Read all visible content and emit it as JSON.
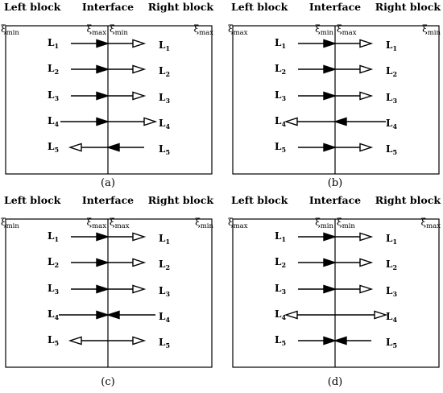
{
  "diagram": {
    "headers": {
      "left": "Left block",
      "mid": "Interface",
      "right": "Right block"
    },
    "xi_symbol": "ξ",
    "line_label_prefix": "L",
    "colors": {
      "line": "#000000",
      "background": "#ffffff"
    },
    "panels": [
      {
        "caption": "(a)",
        "xi": {
          "left_edge": "min",
          "interface_left": "max",
          "interface_right": "min",
          "right_edge": "max"
        },
        "lines": [
          {
            "n": "1",
            "left_seg": "right-filled",
            "right_seg": "right-open"
          },
          {
            "n": "2",
            "left_seg": "right-filled",
            "right_seg": "right-open"
          },
          {
            "n": "3",
            "left_seg": "right-filled",
            "right_seg": "right-open"
          },
          {
            "n": "4",
            "left_seg": "right-filled",
            "right_seg": "right-open"
          },
          {
            "n": "5",
            "left_seg": "left-open",
            "right_seg": "left-filled"
          }
        ]
      },
      {
        "caption": "(b)",
        "xi": {
          "left_edge": "max",
          "interface_left": "min",
          "interface_right": "max",
          "right_edge": "min"
        },
        "lines": [
          {
            "n": "1",
            "left_seg": "right-filled",
            "right_seg": "right-open"
          },
          {
            "n": "2",
            "left_seg": "right-filled",
            "right_seg": "right-open"
          },
          {
            "n": "3",
            "left_seg": "right-filled",
            "right_seg": "right-open"
          },
          {
            "n": "4",
            "left_seg": "left-open",
            "right_seg": "left-filled"
          },
          {
            "n": "5",
            "left_seg": "right-filled",
            "right_seg": "right-open"
          }
        ]
      },
      {
        "caption": "(c)",
        "xi": {
          "left_edge": "min",
          "interface_left": "max",
          "interface_right": "max",
          "right_edge": "min"
        },
        "lines": [
          {
            "n": "1",
            "left_seg": "right-filled",
            "right_seg": "right-open"
          },
          {
            "n": "2",
            "left_seg": "right-filled",
            "right_seg": "right-open"
          },
          {
            "n": "3",
            "left_seg": "right-filled",
            "right_seg": "right-open"
          },
          {
            "n": "4",
            "left_seg": "right-filled",
            "right_seg": "left-filled"
          },
          {
            "n": "5",
            "left_seg": "left-open",
            "right_seg": "right-open"
          }
        ]
      },
      {
        "caption": "(d)",
        "xi": {
          "left_edge": "max",
          "interface_left": "min",
          "interface_right": "min",
          "right_edge": "max"
        },
        "lines": [
          {
            "n": "1",
            "left_seg": "right-filled",
            "right_seg": "right-open"
          },
          {
            "n": "2",
            "left_seg": "right-filled",
            "right_seg": "right-open"
          },
          {
            "n": "3",
            "left_seg": "right-filled",
            "right_seg": "right-open"
          },
          {
            "n": "4",
            "left_seg": "left-open",
            "right_seg": "right-open"
          },
          {
            "n": "5",
            "left_seg": "right-filled",
            "right_seg": "left-filled"
          }
        ]
      }
    ]
  }
}
